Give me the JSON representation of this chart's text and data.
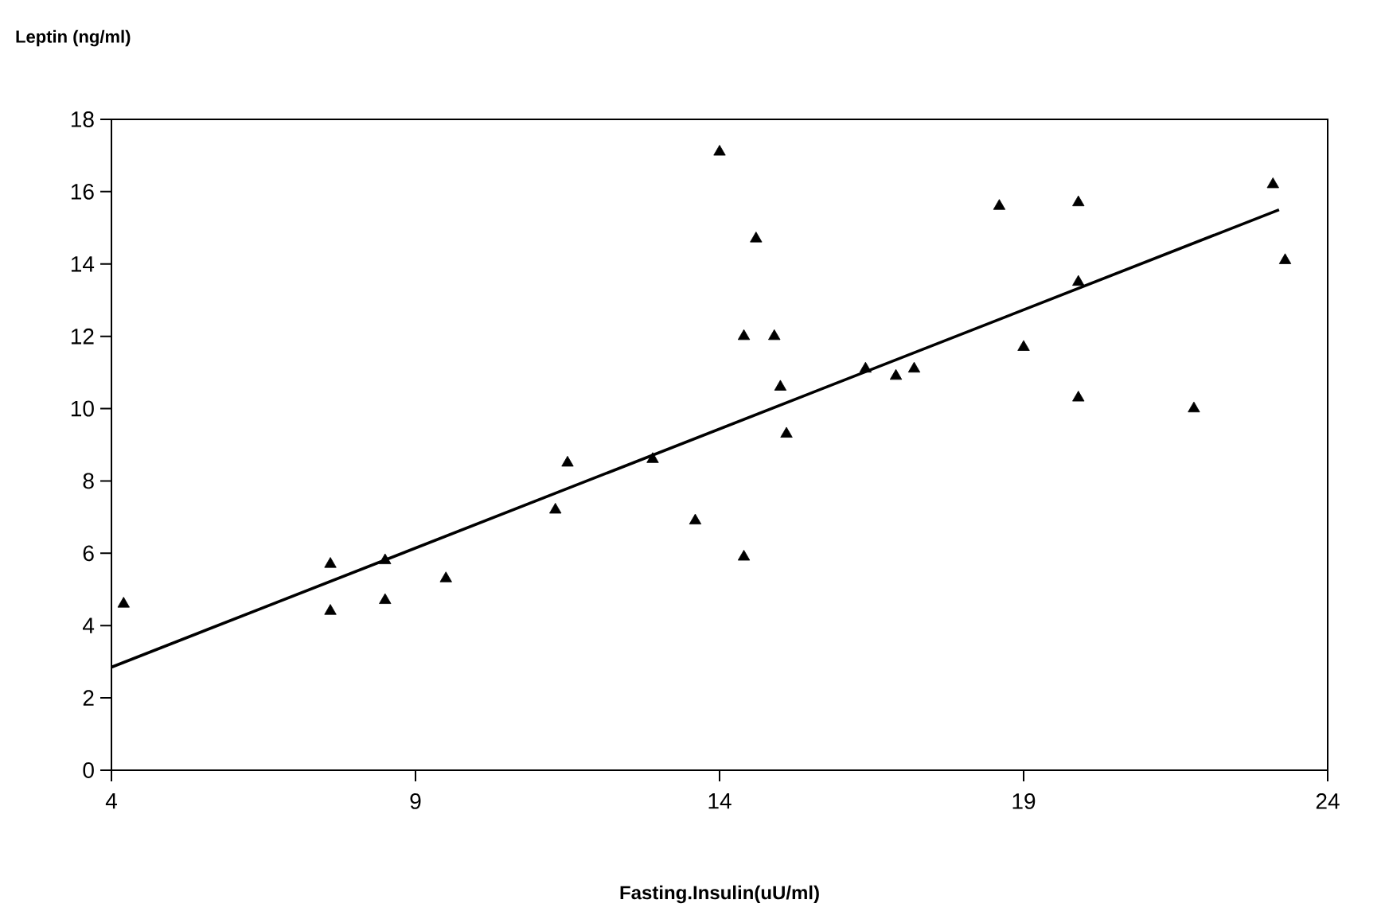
{
  "chart_data": {
    "type": "scatter",
    "xlabel": "Fasting.Insulin(uU/ml)",
    "ylabel": "Leptin (ng/ml)",
    "xlim": [
      4,
      24
    ],
    "xticks": [
      4,
      9,
      14,
      19,
      24
    ],
    "ylim": [
      0,
      18
    ],
    "yticks": [
      0,
      2,
      4,
      6,
      8,
      10,
      12,
      14,
      16,
      18
    ],
    "grid": false,
    "series": [
      {
        "color": "#000000",
        "marker": "triangle",
        "x": [
          4.2,
          7.6,
          7.6,
          8.5,
          8.5,
          9.5,
          11.3,
          11.5,
          12.9,
          13.6,
          14.0,
          14.4,
          14.4,
          14.6,
          14.9,
          15.0,
          15.1,
          16.4,
          16.9,
          17.2,
          18.6,
          19.0,
          19.9,
          19.9,
          19.9,
          21.8,
          23.1,
          23.3
        ],
        "values": [
          4.6,
          5.7,
          4.4,
          5.8,
          4.7,
          5.3,
          7.2,
          8.5,
          8.6,
          6.9,
          17.1,
          12.0,
          5.9,
          14.7,
          12.0,
          10.6,
          9.3,
          11.1,
          10.9,
          11.1,
          15.6,
          11.7,
          15.7,
          13.5,
          10.3,
          10.0,
          16.2,
          14.1
        ]
      },
      {
        "type": "line",
        "color": "#000000",
        "marker": "none",
        "line_style": "solid",
        "x": [
          4,
          23.2
        ],
        "values": [
          2.85,
          15.5
        ]
      }
    ]
  }
}
